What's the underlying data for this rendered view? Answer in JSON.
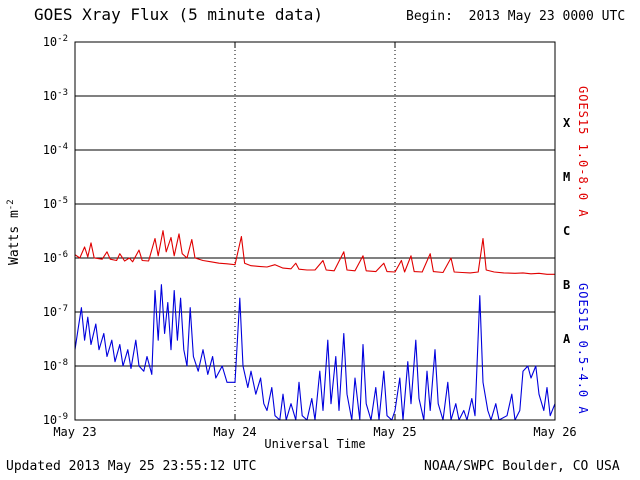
{
  "header": {
    "title": "GOES Xray Flux (5 minute data)",
    "begin": "Begin:  2013 May 23 0000 UTC"
  },
  "footer": {
    "updated": "Updated 2013 May 25 23:55:12 UTC",
    "credit": "NOAA/SWPC Boulder, CO USA"
  },
  "axes": {
    "x_label": "Universal Time",
    "y_label_base": "Watts m",
    "y_label_exp": "-2"
  },
  "chart_data": {
    "type": "line",
    "title": "GOES Xray Flux (5 minute data)",
    "xlabel": "Universal Time",
    "ylabel": "Watts m^-2",
    "yscale": "log",
    "ylim": [
      1e-09,
      0.01
    ],
    "xlim_days": [
      0,
      3
    ],
    "x_start": "2013 May 23 0000 UTC",
    "grid": {
      "horizontal": "solid",
      "vertical": "dotted"
    },
    "background": "#ffffff",
    "axis_color": "#000000",
    "x_ticks": [
      {
        "t": 0,
        "label": "May 23"
      },
      {
        "t": 1,
        "label": "May 24"
      },
      {
        "t": 2,
        "label": "May 25"
      },
      {
        "t": 3,
        "label": "May 26"
      }
    ],
    "y_tick_base": "10",
    "y_ticks": [
      {
        "exp": -2
      },
      {
        "exp": -3
      },
      {
        "exp": -4
      },
      {
        "exp": -5
      },
      {
        "exp": -6
      },
      {
        "exp": -7
      },
      {
        "exp": -8
      },
      {
        "exp": -9
      }
    ],
    "flux_classes": [
      {
        "label": "X",
        "log_center": -3.5
      },
      {
        "label": "M",
        "log_center": -4.5
      },
      {
        "label": "C",
        "log_center": -5.5
      },
      {
        "label": "B",
        "log_center": -6.5
      },
      {
        "label": "A",
        "log_center": -7.5
      }
    ],
    "series": [
      {
        "name": "GOES15 1.0-8.0 A",
        "color": "#e00000",
        "points": [
          [
            0.0,
            1.15e-06
          ],
          [
            0.03,
            1e-06
          ],
          [
            0.06,
            1.6e-06
          ],
          [
            0.08,
            1.05e-06
          ],
          [
            0.1,
            1.9e-06
          ],
          [
            0.12,
            1e-06
          ],
          [
            0.17,
            9.5e-07
          ],
          [
            0.2,
            1.3e-06
          ],
          [
            0.22,
            9.5e-07
          ],
          [
            0.26,
            9e-07
          ],
          [
            0.28,
            1.2e-06
          ],
          [
            0.31,
            8.8e-07
          ],
          [
            0.34,
            1e-06
          ],
          [
            0.36,
            8.5e-07
          ],
          [
            0.4,
            1.4e-06
          ],
          [
            0.42,
            9e-07
          ],
          [
            0.46,
            8.8e-07
          ],
          [
            0.5,
            2.3e-06
          ],
          [
            0.52,
            1.1e-06
          ],
          [
            0.55,
            3.2e-06
          ],
          [
            0.57,
            1.3e-06
          ],
          [
            0.6,
            2.4e-06
          ],
          [
            0.62,
            1.1e-06
          ],
          [
            0.65,
            2.8e-06
          ],
          [
            0.67,
            1.2e-06
          ],
          [
            0.7,
            1e-06
          ],
          [
            0.73,
            2.2e-06
          ],
          [
            0.75,
            1e-06
          ],
          [
            0.8,
            9e-07
          ],
          [
            0.85,
            8.5e-07
          ],
          [
            0.9,
            8e-07
          ],
          [
            0.95,
            7.8e-07
          ],
          [
            1.0,
            7.5e-07
          ],
          [
            1.04,
            2.5e-06
          ],
          [
            1.06,
            8e-07
          ],
          [
            1.1,
            7.2e-07
          ],
          [
            1.15,
            7e-07
          ],
          [
            1.2,
            6.8e-07
          ],
          [
            1.25,
            7.5e-07
          ],
          [
            1.3,
            6.5e-07
          ],
          [
            1.35,
            6.3e-07
          ],
          [
            1.38,
            8e-07
          ],
          [
            1.4,
            6.2e-07
          ],
          [
            1.45,
            6e-07
          ],
          [
            1.5,
            6e-07
          ],
          [
            1.55,
            9e-07
          ],
          [
            1.57,
            6e-07
          ],
          [
            1.62,
            5.8e-07
          ],
          [
            1.68,
            1.3e-06
          ],
          [
            1.7,
            6e-07
          ],
          [
            1.75,
            5.8e-07
          ],
          [
            1.8,
            1.1e-06
          ],
          [
            1.82,
            5.8e-07
          ],
          [
            1.88,
            5.6e-07
          ],
          [
            1.93,
            8e-07
          ],
          [
            1.95,
            5.6e-07
          ],
          [
            2.0,
            5.5e-07
          ],
          [
            2.04,
            9e-07
          ],
          [
            2.06,
            5.5e-07
          ],
          [
            2.1,
            1.1e-06
          ],
          [
            2.12,
            5.6e-07
          ],
          [
            2.17,
            5.5e-07
          ],
          [
            2.22,
            1.2e-06
          ],
          [
            2.24,
            5.6e-07
          ],
          [
            2.3,
            5.4e-07
          ],
          [
            2.35,
            1e-06
          ],
          [
            2.37,
            5.5e-07
          ],
          [
            2.42,
            5.4e-07
          ],
          [
            2.47,
            5.3e-07
          ],
          [
            2.52,
            5.5e-07
          ],
          [
            2.55,
            2.3e-06
          ],
          [
            2.57,
            6e-07
          ],
          [
            2.62,
            5.5e-07
          ],
          [
            2.68,
            5.3e-07
          ],
          [
            2.75,
            5.2e-07
          ],
          [
            2.8,
            5.3e-07
          ],
          [
            2.85,
            5.1e-07
          ],
          [
            2.9,
            5.2e-07
          ],
          [
            2.95,
            5e-07
          ],
          [
            3.0,
            5e-07
          ]
        ]
      },
      {
        "name": "GOES15 0.5-4.0 A",
        "color": "#0000dd",
        "points": [
          [
            0.0,
            2e-08
          ],
          [
            0.02,
            5e-08
          ],
          [
            0.04,
            1.2e-07
          ],
          [
            0.06,
            3e-08
          ],
          [
            0.08,
            8e-08
          ],
          [
            0.1,
            2.5e-08
          ],
          [
            0.13,
            6e-08
          ],
          [
            0.15,
            2e-08
          ],
          [
            0.18,
            4e-08
          ],
          [
            0.2,
            1.5e-08
          ],
          [
            0.23,
            3e-08
          ],
          [
            0.25,
            1.2e-08
          ],
          [
            0.28,
            2.5e-08
          ],
          [
            0.3,
            1e-08
          ],
          [
            0.33,
            2e-08
          ],
          [
            0.35,
            9e-09
          ],
          [
            0.38,
            3e-08
          ],
          [
            0.4,
            1e-08
          ],
          [
            0.43,
            8e-09
          ],
          [
            0.45,
            1.5e-08
          ],
          [
            0.48,
            7e-09
          ],
          [
            0.5,
            2.5e-07
          ],
          [
            0.52,
            3e-08
          ],
          [
            0.54,
            3.2e-07
          ],
          [
            0.56,
            4e-08
          ],
          [
            0.58,
            1.5e-07
          ],
          [
            0.6,
            2e-08
          ],
          [
            0.62,
            2.5e-07
          ],
          [
            0.64,
            3e-08
          ],
          [
            0.66,
            1.8e-07
          ],
          [
            0.68,
            2e-08
          ],
          [
            0.7,
            1e-08
          ],
          [
            0.72,
            1.2e-07
          ],
          [
            0.74,
            1.5e-08
          ],
          [
            0.77,
            8e-09
          ],
          [
            0.8,
            2e-08
          ],
          [
            0.83,
            7e-09
          ],
          [
            0.86,
            1.5e-08
          ],
          [
            0.88,
            6e-09
          ],
          [
            0.92,
            1e-08
          ],
          [
            0.95,
            5e-09
          ],
          [
            1.0,
            5e-09
          ],
          [
            1.03,
            1.8e-07
          ],
          [
            1.05,
            1e-08
          ],
          [
            1.08,
            4e-09
          ],
          [
            1.1,
            8e-09
          ],
          [
            1.13,
            3e-09
          ],
          [
            1.16,
            6e-09
          ],
          [
            1.18,
            2e-09
          ],
          [
            1.2,
            1.5e-09
          ],
          [
            1.23,
            4e-09
          ],
          [
            1.25,
            1.2e-09
          ],
          [
            1.28,
            1e-09
          ],
          [
            1.3,
            3e-09
          ],
          [
            1.32,
            1e-09
          ],
          [
            1.35,
            2e-09
          ],
          [
            1.38,
            1e-09
          ],
          [
            1.4,
            5e-09
          ],
          [
            1.42,
            1.2e-09
          ],
          [
            1.45,
            1e-09
          ],
          [
            1.48,
            2.5e-09
          ],
          [
            1.5,
            1e-09
          ],
          [
            1.53,
            8e-09
          ],
          [
            1.55,
            1.5e-09
          ],
          [
            1.58,
            3e-08
          ],
          [
            1.6,
            2e-09
          ],
          [
            1.63,
            1.5e-08
          ],
          [
            1.65,
            1.5e-09
          ],
          [
            1.68,
            4e-08
          ],
          [
            1.7,
            3e-09
          ],
          [
            1.73,
            1e-09
          ],
          [
            1.75,
            6e-09
          ],
          [
            1.78,
            1e-09
          ],
          [
            1.8,
            2.5e-08
          ],
          [
            1.82,
            2e-09
          ],
          [
            1.85,
            1e-09
          ],
          [
            1.88,
            4e-09
          ],
          [
            1.9,
            1e-09
          ],
          [
            1.93,
            8e-09
          ],
          [
            1.95,
            1.2e-09
          ],
          [
            1.98,
            1e-09
          ],
          [
            2.0,
            1.5e-09
          ],
          [
            2.03,
            6e-09
          ],
          [
            2.05,
            1e-09
          ],
          [
            2.08,
            1.2e-08
          ],
          [
            2.1,
            2e-09
          ],
          [
            2.13,
            3e-08
          ],
          [
            2.15,
            2.5e-09
          ],
          [
            2.18,
            1e-09
          ],
          [
            2.2,
            8e-09
          ],
          [
            2.22,
            1.5e-09
          ],
          [
            2.25,
            2e-08
          ],
          [
            2.27,
            2e-09
          ],
          [
            2.3,
            1e-09
          ],
          [
            2.33,
            5e-09
          ],
          [
            2.35,
            1e-09
          ],
          [
            2.38,
            2e-09
          ],
          [
            2.4,
            1e-09
          ],
          [
            2.43,
            1.5e-09
          ],
          [
            2.45,
            1e-09
          ],
          [
            2.48,
            2.5e-09
          ],
          [
            2.5,
            1.2e-09
          ],
          [
            2.53,
            2e-07
          ],
          [
            2.55,
            5e-09
          ],
          [
            2.58,
            1.5e-09
          ],
          [
            2.6,
            1e-09
          ],
          [
            2.63,
            2e-09
          ],
          [
            2.65,
            1e-09
          ],
          [
            2.7,
            1.2e-09
          ],
          [
            2.73,
            3e-09
          ],
          [
            2.75,
            1e-09
          ],
          [
            2.78,
            1.5e-09
          ],
          [
            2.8,
            8e-09
          ],
          [
            2.83,
            1e-08
          ],
          [
            2.85,
            6e-09
          ],
          [
            2.88,
            1e-08
          ],
          [
            2.9,
            3e-09
          ],
          [
            2.93,
            1.5e-09
          ],
          [
            2.95,
            4e-09
          ],
          [
            2.97,
            1.2e-09
          ],
          [
            3.0,
            2e-09
          ]
        ]
      }
    ]
  }
}
